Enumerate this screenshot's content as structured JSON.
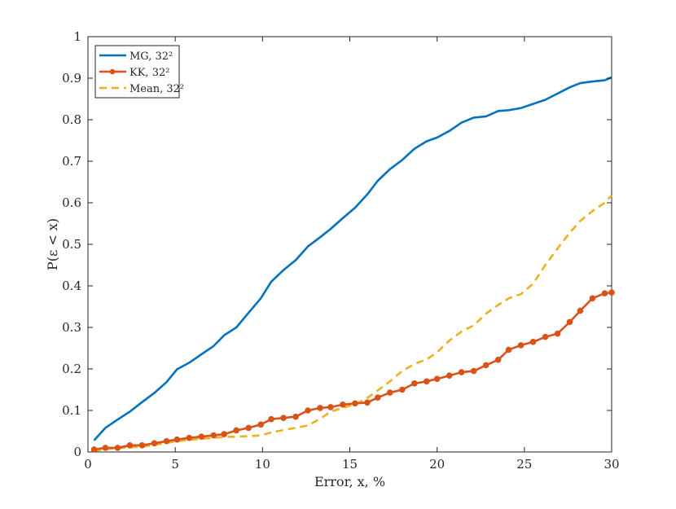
{
  "chart_data": {
    "type": "line",
    "title": "",
    "xlabel": "Error, x, %",
    "ylabel": "P(ε < x)",
    "xlim": [
      0,
      30
    ],
    "ylim": [
      0,
      1
    ],
    "xticks": [
      "0",
      "5",
      "10",
      "15",
      "20",
      "25",
      "30"
    ],
    "yticks": [
      "0",
      "0.1",
      "0.2",
      "0.3",
      "0.4",
      "0.5",
      "0.6",
      "0.7",
      "0.8",
      "0.9",
      "1"
    ],
    "grid": false,
    "legend_position": "top-left",
    "series": [
      {
        "name": "MG, 32²",
        "color": "#0072BD",
        "style": "solid",
        "markers": false,
        "x": [
          0.35,
          1.0,
          1.7,
          2.4,
          3.1,
          3.8,
          4.5,
          5.1,
          5.8,
          6.5,
          7.2,
          7.8,
          8.5,
          9.2,
          9.9,
          10.5,
          11.2,
          11.9,
          12.6,
          13.3,
          13.9,
          14.6,
          15.3,
          16.0,
          16.6,
          17.3,
          18.0,
          18.7,
          19.4,
          20.0,
          20.7,
          21.4,
          22.1,
          22.8,
          23.5,
          24.1,
          24.8,
          25.5,
          26.2,
          26.9,
          27.6,
          28.2,
          28.9,
          29.6,
          30.0
        ],
        "y": [
          0.028,
          0.058,
          0.078,
          0.097,
          0.12,
          0.142,
          0.168,
          0.199,
          0.215,
          0.235,
          0.255,
          0.281,
          0.3,
          0.335,
          0.37,
          0.41,
          0.438,
          0.462,
          0.495,
          0.517,
          0.537,
          0.563,
          0.588,
          0.62,
          0.653,
          0.681,
          0.703,
          0.73,
          0.748,
          0.757,
          0.773,
          0.793,
          0.805,
          0.808,
          0.821,
          0.823,
          0.828,
          0.838,
          0.848,
          0.863,
          0.878,
          0.888,
          0.892,
          0.895,
          0.902
        ]
      },
      {
        "name": "KK, 32²",
        "color": "#D95319",
        "style": "solid",
        "markers": true,
        "x": [
          0.35,
          1.0,
          1.7,
          2.4,
          3.1,
          3.8,
          4.5,
          5.1,
          5.8,
          6.5,
          7.2,
          7.8,
          8.5,
          9.2,
          9.9,
          10.5,
          11.2,
          11.9,
          12.6,
          13.3,
          13.9,
          14.6,
          15.3,
          16.0,
          16.6,
          17.3,
          18.0,
          18.7,
          19.4,
          20.0,
          20.7,
          21.4,
          22.1,
          22.8,
          23.5,
          24.1,
          24.8,
          25.5,
          26.2,
          26.9,
          27.6,
          28.2,
          28.9,
          29.6,
          30.0
        ],
        "y": [
          0.006,
          0.01,
          0.01,
          0.016,
          0.016,
          0.021,
          0.026,
          0.03,
          0.034,
          0.037,
          0.04,
          0.043,
          0.052,
          0.058,
          0.066,
          0.079,
          0.082,
          0.085,
          0.1,
          0.106,
          0.108,
          0.114,
          0.117,
          0.119,
          0.131,
          0.143,
          0.15,
          0.165,
          0.17,
          0.176,
          0.184,
          0.192,
          0.195,
          0.209,
          0.222,
          0.246,
          0.257,
          0.265,
          0.277,
          0.285,
          0.313,
          0.34,
          0.37,
          0.382,
          0.384
        ]
      },
      {
        "name": "Mean, 32²",
        "color": "#EDB120",
        "style": "dashed",
        "markers": false,
        "x": [
          0.35,
          1.0,
          1.7,
          2.4,
          3.1,
          3.8,
          4.5,
          5.1,
          5.8,
          6.5,
          7.2,
          7.8,
          8.5,
          9.2,
          9.9,
          10.5,
          11.2,
          11.9,
          12.6,
          13.3,
          13.9,
          14.6,
          15.3,
          16.0,
          16.6,
          17.3,
          18.0,
          18.7,
          19.4,
          20.0,
          20.7,
          21.4,
          22.1,
          22.8,
          23.5,
          24.1,
          24.8,
          25.5,
          26.2,
          26.9,
          27.6,
          28.2,
          28.9,
          29.6,
          30.0
        ],
        "y": [
          0.003,
          0.006,
          0.01,
          0.011,
          0.013,
          0.017,
          0.022,
          0.026,
          0.029,
          0.032,
          0.034,
          0.036,
          0.037,
          0.038,
          0.04,
          0.047,
          0.053,
          0.058,
          0.064,
          0.08,
          0.097,
          0.106,
          0.115,
          0.13,
          0.148,
          0.17,
          0.195,
          0.212,
          0.223,
          0.24,
          0.268,
          0.29,
          0.305,
          0.333,
          0.354,
          0.37,
          0.38,
          0.405,
          0.45,
          0.49,
          0.528,
          0.556,
          0.58,
          0.6,
          0.618
        ]
      }
    ]
  }
}
